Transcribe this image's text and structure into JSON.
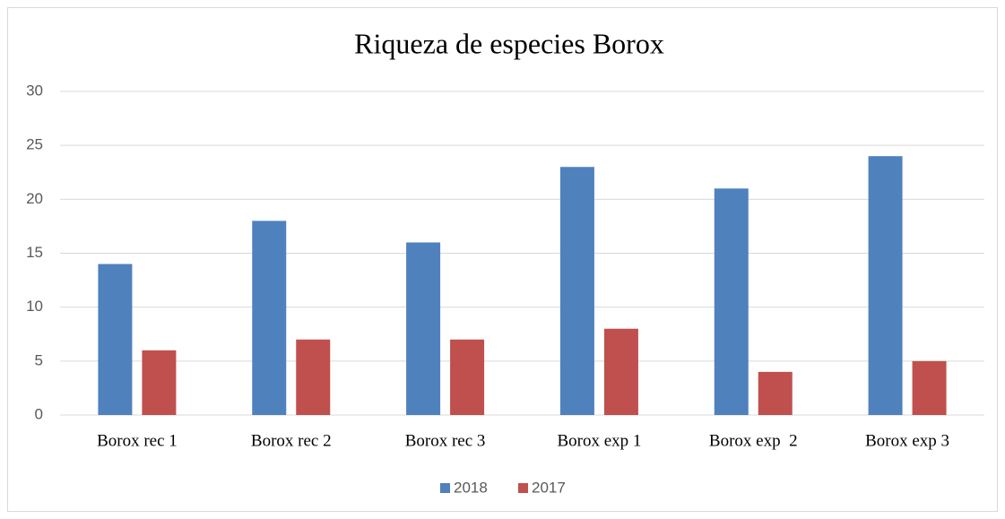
{
  "chart_data": {
    "type": "bar",
    "title": "Riqueza de especies Borox",
    "categories": [
      "Borox rec 1",
      "Borox rec 2",
      "Borox rec 3",
      "Borox exp 1",
      "Borox exp  2",
      "Borox exp 3"
    ],
    "series": [
      {
        "name": "2018",
        "color": "#4f81bd",
        "values": [
          14,
          18,
          16,
          23,
          21,
          24
        ]
      },
      {
        "name": "2017",
        "color": "#c0504d",
        "values": [
          6,
          7,
          7,
          8,
          4,
          5
        ]
      }
    ],
    "ylim": [
      0,
      30
    ],
    "yticks": [
      0,
      5,
      10,
      15,
      20,
      25,
      30
    ],
    "grid": true,
    "legend": "bottom"
  }
}
